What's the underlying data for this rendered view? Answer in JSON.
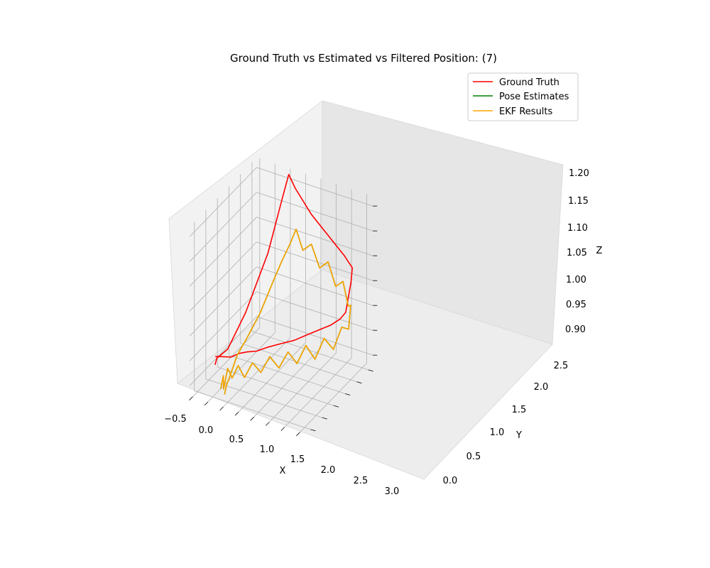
{
  "chart_data": {
    "type": "line",
    "projection": "3d",
    "title": "Ground Truth vs Estimated vs Filtered Position: (7)",
    "xlabel": "X",
    "ylabel": "Y",
    "zlabel": "Z",
    "x_ticks": [
      "−0.5",
      "0.0",
      "0.5",
      "1.0",
      "1.5",
      "2.0",
      "2.5",
      "3.0"
    ],
    "y_ticks": [
      "0.0",
      "0.5",
      "1.0",
      "1.5",
      "2.0",
      "2.5"
    ],
    "z_ticks": [
      "0.90",
      "0.95",
      "1.00",
      "1.05",
      "1.10",
      "1.15",
      "1.20"
    ],
    "xlim": [
      -0.6,
      3.2
    ],
    "ylim": [
      -0.2,
      2.7
    ],
    "zlim": [
      0.88,
      1.22
    ],
    "grid": true,
    "legend_position": "top-right",
    "colors": {
      "ground_truth": "#ff0000",
      "pose_estimates": "#008000",
      "ekf_results": "#ffa500",
      "pane": "#f2f2f2",
      "grid": "#b0b0b0"
    },
    "series": [
      {
        "name": "Ground Truth",
        "color": "#ff0000",
        "points": [
          [
            0.05,
            0.05,
            0.96
          ],
          [
            0.22,
            0.12,
            0.96
          ],
          [
            0.45,
            0.2,
            0.96
          ],
          [
            0.62,
            0.32,
            0.965
          ],
          [
            0.78,
            0.45,
            0.965
          ],
          [
            1.0,
            0.58,
            0.965
          ],
          [
            1.25,
            0.75,
            0.97
          ],
          [
            1.55,
            0.92,
            0.975
          ],
          [
            1.85,
            1.08,
            0.98
          ],
          [
            2.15,
            1.22,
            0.99
          ],
          [
            2.45,
            1.35,
            1.0
          ],
          [
            2.75,
            1.48,
            1.01
          ],
          [
            2.95,
            1.6,
            1.02
          ],
          [
            3.05,
            1.72,
            1.03
          ],
          [
            3.05,
            1.95,
            1.08
          ],
          [
            2.98,
            2.1,
            1.1
          ],
          [
            2.6,
            2.25,
            1.11
          ],
          [
            2.0,
            2.38,
            1.13
          ],
          [
            1.4,
            2.42,
            1.16
          ],
          [
            0.85,
            2.45,
            1.2
          ],
          [
            0.6,
            2.5,
            1.22
          ],
          [
            0.45,
            2.4,
            1.17
          ],
          [
            0.3,
            2.0,
            1.08
          ],
          [
            0.1,
            1.3,
            0.99
          ],
          [
            0.0,
            0.65,
            0.945
          ],
          [
            -0.05,
            0.25,
            0.945
          ],
          [
            0.0,
            0.1,
            0.94
          ]
        ]
      },
      {
        "name": "Pose Estimates",
        "color": "#008000",
        "points": [
          [
            0.3,
            -0.05,
            0.905
          ],
          [
            0.35,
            0.0,
            0.93
          ],
          [
            0.32,
            0.05,
            0.9
          ],
          [
            0.4,
            0.12,
            0.94
          ],
          [
            0.5,
            0.18,
            0.92
          ],
          [
            0.65,
            0.24,
            0.945
          ],
          [
            0.8,
            0.32,
            0.92
          ],
          [
            1.0,
            0.4,
            0.95
          ],
          [
            1.2,
            0.5,
            0.93
          ],
          [
            1.4,
            0.62,
            0.96
          ],
          [
            1.6,
            0.75,
            0.935
          ],
          [
            1.8,
            0.88,
            0.965
          ],
          [
            2.0,
            1.0,
            0.94
          ],
          [
            2.2,
            1.12,
            0.975
          ],
          [
            2.4,
            1.25,
            0.945
          ],
          [
            2.6,
            1.38,
            0.985
          ],
          [
            2.8,
            1.52,
            0.96
          ],
          [
            2.95,
            1.68,
            1.0
          ],
          [
            3.05,
            1.85,
            0.99
          ],
          [
            3.0,
            2.0,
            1.03
          ],
          [
            2.85,
            2.1,
            1.02
          ],
          [
            2.6,
            2.2,
            1.06
          ],
          [
            2.3,
            2.28,
            1.04
          ],
          [
            2.0,
            2.35,
            1.08
          ],
          [
            1.7,
            2.38,
            1.06
          ],
          [
            1.4,
            2.42,
            1.1
          ],
          [
            1.1,
            2.45,
            1.08
          ],
          [
            0.9,
            2.42,
            1.12
          ],
          [
            0.75,
            2.35,
            1.09
          ],
          [
            0.6,
            2.2,
            1.06
          ],
          [
            0.45,
            1.95,
            1.02
          ],
          [
            0.35,
            1.6,
            0.98
          ],
          [
            0.25,
            1.2,
            0.95
          ],
          [
            0.2,
            0.8,
            0.93
          ],
          [
            0.25,
            0.45,
            0.91
          ],
          [
            0.3,
            0.2,
            0.9
          ],
          [
            0.35,
            0.05,
            0.89
          ]
        ]
      },
      {
        "name": "EKF Results",
        "color": "#ffa500",
        "points": [
          [
            0.3,
            -0.05,
            0.905
          ],
          [
            0.35,
            0.0,
            0.93
          ],
          [
            0.32,
            0.05,
            0.9
          ],
          [
            0.4,
            0.12,
            0.94
          ],
          [
            0.5,
            0.18,
            0.92
          ],
          [
            0.65,
            0.24,
            0.945
          ],
          [
            0.8,
            0.32,
            0.92
          ],
          [
            1.0,
            0.4,
            0.95
          ],
          [
            1.2,
            0.5,
            0.93
          ],
          [
            1.4,
            0.62,
            0.96
          ],
          [
            1.6,
            0.75,
            0.935
          ],
          [
            1.8,
            0.88,
            0.965
          ],
          [
            2.0,
            1.0,
            0.94
          ],
          [
            2.2,
            1.12,
            0.975
          ],
          [
            2.4,
            1.25,
            0.945
          ],
          [
            2.6,
            1.38,
            0.985
          ],
          [
            2.8,
            1.52,
            0.96
          ],
          [
            2.95,
            1.68,
            1.0
          ],
          [
            3.05,
            1.85,
            0.99
          ],
          [
            3.0,
            2.0,
            1.03
          ],
          [
            2.85,
            2.1,
            1.02
          ],
          [
            2.6,
            2.2,
            1.06
          ],
          [
            2.3,
            2.28,
            1.04
          ],
          [
            2.0,
            2.35,
            1.08
          ],
          [
            1.7,
            2.38,
            1.06
          ],
          [
            1.4,
            2.42,
            1.1
          ],
          [
            1.1,
            2.45,
            1.08
          ],
          [
            0.9,
            2.42,
            1.12
          ],
          [
            0.75,
            2.35,
            1.09
          ],
          [
            0.6,
            2.2,
            1.06
          ],
          [
            0.45,
            1.95,
            1.02
          ],
          [
            0.35,
            1.6,
            0.98
          ],
          [
            0.25,
            1.2,
            0.95
          ],
          [
            0.2,
            0.8,
            0.93
          ],
          [
            0.25,
            0.45,
            0.91
          ],
          [
            0.3,
            0.2,
            0.9
          ],
          [
            0.35,
            0.05,
            0.89
          ]
        ]
      }
    ]
  }
}
